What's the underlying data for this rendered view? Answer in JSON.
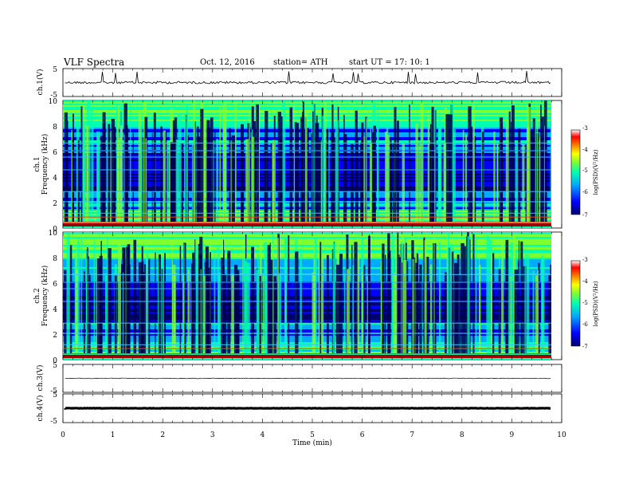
{
  "header": {
    "title": "VLF  Spectra",
    "date": "Oct. 12, 2016",
    "station": "station= ATH",
    "start": "start  UT  =    17: 10: 1"
  },
  "colors": {
    "axis": "#000000",
    "colormap": [
      "#000070",
      "#0000ff",
      "#00aaff",
      "#00ffb0",
      "#80ff30",
      "#ffff00",
      "#ff8000",
      "#ff0000",
      "#ffffff"
    ]
  },
  "chart_data": [
    {
      "type": "line",
      "panel": "ch1_waveform",
      "ylabel": "ch.1(V)",
      "ylim": [
        -5,
        5
      ],
      "yticks": [
        "5",
        "-5"
      ],
      "baseline": 0,
      "note_values": "noisy trace near 0 V with sparse spikes"
    },
    {
      "type": "heatmap",
      "panel": "ch1_spectrogram",
      "ylabel_lines": [
        "ch.1",
        "Frequency  (kHz)"
      ],
      "ylim": [
        0,
        10
      ],
      "yticks": [
        "0",
        "2",
        "4",
        "6",
        "8",
        "10"
      ],
      "xlim": [
        0,
        9.8
      ],
      "colorbar": {
        "label": "log(PSD)(V²/Hz)",
        "range": [
          -7,
          -3
        ],
        "ticks": [
          "-3",
          "-4",
          "-5",
          "-6",
          "-7"
        ]
      }
    },
    {
      "type": "heatmap",
      "panel": "ch2_spectrogram",
      "ylabel_lines": [
        "ch.2",
        "Frequency  (kHz)"
      ],
      "ylim": [
        0,
        10
      ],
      "yticks": [
        "0",
        "2",
        "4",
        "6",
        "8",
        "10"
      ],
      "xlim": [
        0,
        9.8
      ],
      "colorbar": {
        "label": "log(PSD)(V²/Hz)",
        "range": [
          -7,
          -3
        ],
        "ticks": [
          "-3",
          "-4",
          "-5",
          "-6",
          "-7"
        ]
      }
    },
    {
      "type": "line",
      "panel": "ch3_waveform",
      "ylabel": "ch.3(V)",
      "ylim": [
        -5,
        5
      ],
      "yticks": [
        "5",
        "-5"
      ],
      "baseline": 0
    },
    {
      "type": "line",
      "panel": "ch4_waveform",
      "ylabel": "ch.4(V)",
      "ylim": [
        -5,
        5
      ],
      "yticks": [
        "5",
        "-5"
      ],
      "baseline": 0
    }
  ],
  "xaxis": {
    "label": "Time  (min)",
    "xlim": [
      0,
      10
    ],
    "ticks": [
      "0",
      "1",
      "2",
      "3",
      "4",
      "5",
      "6",
      "7",
      "8",
      "9",
      "10"
    ]
  }
}
